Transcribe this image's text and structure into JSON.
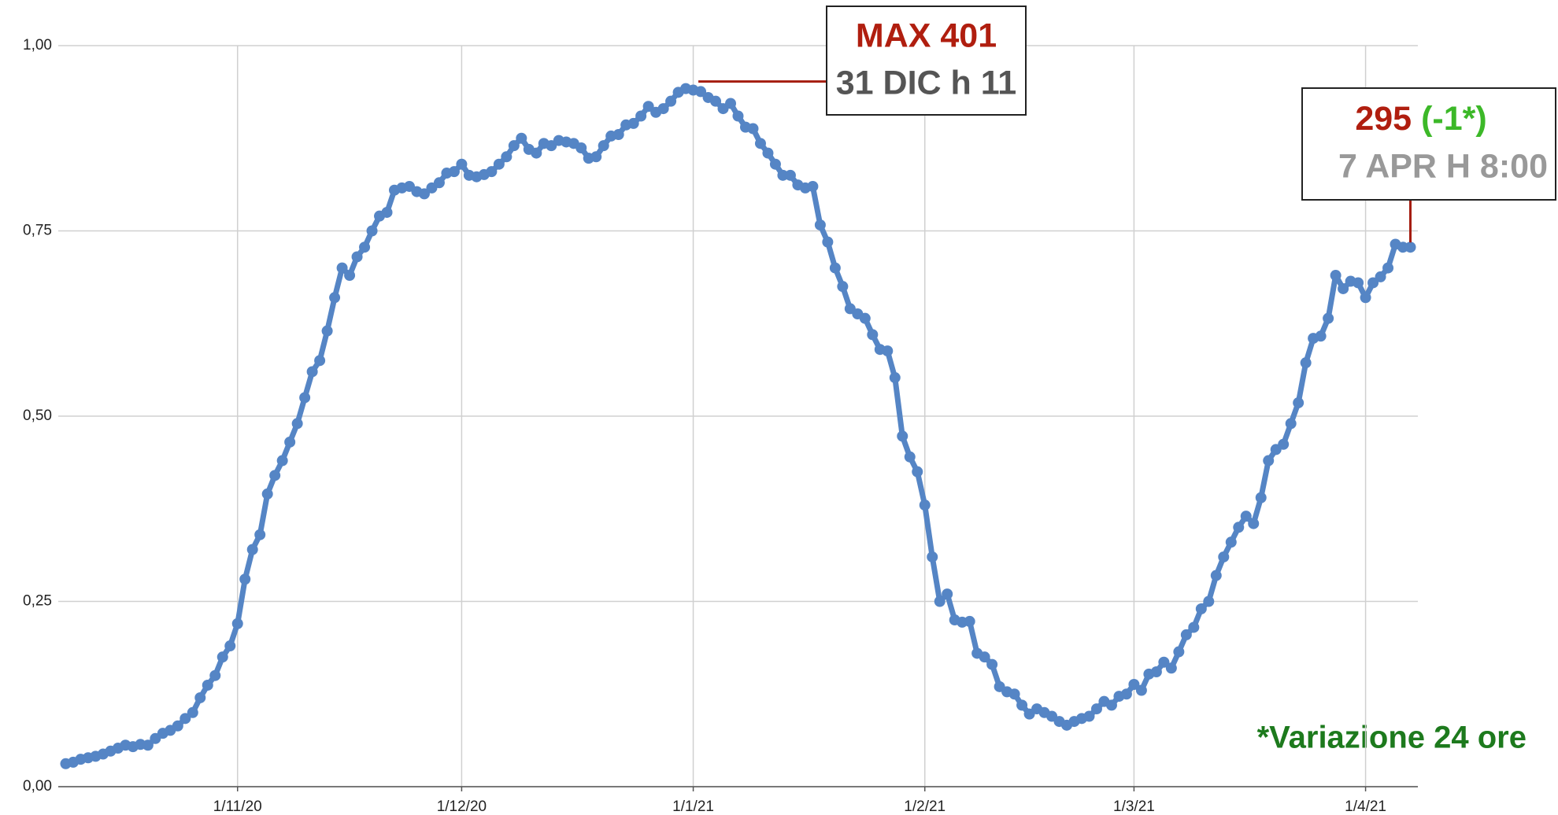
{
  "chart_data": {
    "type": "line",
    "color": "#5585c5",
    "grid": true,
    "x": [
      "9/10/20",
      "10/10/20",
      "11/10/20",
      "12/10/20",
      "13/10/20",
      "14/10/20",
      "15/10/20",
      "16/10/20",
      "17/10/20",
      "18/10/20",
      "19/10/20",
      "20/10/20",
      "21/10/20",
      "22/10/20",
      "23/10/20",
      "24/10/20",
      "25/10/20",
      "26/10/20",
      "27/10/20",
      "28/10/20",
      "29/10/20",
      "30/10/20",
      "31/10/20",
      "1/11/20",
      "2/11/20",
      "3/11/20",
      "4/11/20",
      "5/11/20",
      "6/11/20",
      "7/11/20",
      "8/11/20",
      "9/11/20",
      "10/11/20",
      "11/11/20",
      "12/11/20",
      "13/11/20",
      "14/11/20",
      "15/11/20",
      "16/11/20",
      "17/11/20",
      "18/11/20",
      "19/11/20",
      "20/11/20",
      "21/11/20",
      "22/11/20",
      "23/11/20",
      "24/11/20",
      "25/11/20",
      "26/11/20",
      "27/11/20",
      "28/11/20",
      "29/11/20",
      "30/11/20",
      "1/12/20",
      "2/12/20",
      "3/12/20",
      "4/12/20",
      "5/12/20",
      "6/12/20",
      "7/12/20",
      "8/12/20",
      "9/12/20",
      "10/12/20",
      "11/12/20",
      "12/12/20",
      "13/12/20",
      "14/12/20",
      "15/12/20",
      "16/12/20",
      "17/12/20",
      "18/12/20",
      "19/12/20",
      "20/12/20",
      "21/12/20",
      "22/12/20",
      "23/12/20",
      "24/12/20",
      "25/12/20",
      "26/12/20",
      "27/12/20",
      "28/12/20",
      "29/12/20",
      "30/12/20",
      "31/12/20",
      "1/1/21",
      "2/1/21",
      "3/1/21",
      "4/1/21",
      "5/1/21",
      "6/1/21",
      "7/1/21",
      "8/1/21",
      "9/1/21",
      "10/1/21",
      "11/1/21",
      "12/1/21",
      "13/1/21",
      "14/1/21",
      "15/1/21",
      "16/1/21",
      "17/1/21",
      "18/1/21",
      "19/1/21",
      "20/1/21",
      "21/1/21",
      "22/1/21",
      "23/1/21",
      "24/1/21",
      "25/1/21",
      "26/1/21",
      "27/1/21",
      "28/1/21",
      "29/1/21",
      "30/1/21",
      "31/1/21",
      "1/2/21",
      "2/2/21",
      "3/2/21",
      "4/2/21",
      "5/2/21",
      "6/2/21",
      "7/2/21",
      "8/2/21",
      "9/2/21",
      "10/2/21",
      "11/2/21",
      "12/2/21",
      "13/2/21",
      "14/2/21",
      "15/2/21",
      "16/2/21",
      "17/2/21",
      "18/2/21",
      "19/2/21",
      "20/2/21",
      "21/2/21",
      "22/2/21",
      "23/2/21",
      "24/2/21",
      "25/2/21",
      "26/2/21",
      "27/2/21",
      "28/2/21",
      "1/3/21",
      "2/3/21",
      "3/3/21",
      "4/3/21",
      "5/3/21",
      "6/3/21",
      "7/3/21",
      "8/3/21",
      "9/3/21",
      "10/3/21",
      "11/3/21",
      "12/3/21",
      "13/3/21",
      "14/3/21",
      "15/3/21",
      "16/3/21",
      "17/3/21",
      "18/3/21",
      "19/3/21",
      "20/3/21",
      "21/3/21",
      "22/3/21",
      "23/3/21",
      "24/3/21",
      "25/3/21",
      "26/3/21",
      "27/3/21",
      "28/3/21",
      "29/3/21",
      "30/3/21",
      "31/3/21",
      "1/4/21",
      "2/4/21",
      "3/4/21",
      "4/4/21",
      "5/4/21",
      "6/4/21",
      "7/4/21"
    ],
    "values": [
      0.031,
      0.033,
      0.037,
      0.039,
      0.041,
      0.044,
      0.048,
      0.052,
      0.056,
      0.054,
      0.057,
      0.056,
      0.065,
      0.072,
      0.076,
      0.082,
      0.092,
      0.1,
      0.12,
      0.137,
      0.15,
      0.175,
      0.19,
      0.22,
      0.28,
      0.32,
      0.34,
      0.395,
      0.42,
      0.44,
      0.465,
      0.49,
      0.525,
      0.56,
      0.575,
      0.615,
      0.66,
      0.7,
      0.69,
      0.715,
      0.728,
      0.75,
      0.77,
      0.775,
      0.805,
      0.808,
      0.81,
      0.803,
      0.8,
      0.808,
      0.815,
      0.828,
      0.83,
      0.84,
      0.825,
      0.823,
      0.826,
      0.83,
      0.84,
      0.85,
      0.865,
      0.875,
      0.86,
      0.855,
      0.868,
      0.865,
      0.872,
      0.87,
      0.868,
      0.862,
      0.848,
      0.85,
      0.865,
      0.878,
      0.88,
      0.893,
      0.895,
      0.905,
      0.918,
      0.91,
      0.915,
      0.925,
      0.937,
      0.942,
      0.94,
      0.938,
      0.93,
      0.925,
      0.915,
      0.922,
      0.905,
      0.89,
      0.888,
      0.868,
      0.855,
      0.84,
      0.825,
      0.825,
      0.812,
      0.808,
      0.81,
      0.758,
      0.735,
      0.7,
      0.675,
      0.645,
      0.638,
      0.632,
      0.61,
      0.59,
      0.588,
      0.552,
      0.473,
      0.445,
      0.425,
      0.38,
      0.31,
      0.25,
      0.26,
      0.225,
      0.222,
      0.223,
      0.18,
      0.175,
      0.165,
      0.135,
      0.128,
      0.125,
      0.11,
      0.098,
      0.105,
      0.1,
      0.095,
      0.088,
      0.083,
      0.088,
      0.092,
      0.095,
      0.105,
      0.115,
      0.11,
      0.122,
      0.125,
      0.138,
      0.13,
      0.152,
      0.155,
      0.168,
      0.16,
      0.182,
      0.205,
      0.215,
      0.24,
      0.25,
      0.285,
      0.31,
      0.33,
      0.35,
      0.365,
      0.355,
      0.39,
      0.44,
      0.455,
      0.462,
      0.49,
      0.518,
      0.572,
      0.605,
      0.608,
      0.632,
      0.69,
      0.672,
      0.682,
      0.68,
      0.66,
      0.68,
      0.688,
      0.7,
      0.732,
      0.728,
      0.728
    ],
    "xlim": [
      "8/10/20",
      "8/4/21"
    ],
    "xticks": [
      "1/11/20",
      "1/12/20",
      "1/1/21",
      "1/2/21",
      "1/3/21",
      "1/4/21"
    ],
    "ylim": [
      0,
      1
    ],
    "yticks": [
      {
        "value": 0,
        "label": "0,00"
      },
      {
        "value": 0.25,
        "label": "0,25"
      },
      {
        "value": 0.5,
        "label": "0,50"
      },
      {
        "value": 0.75,
        "label": "0,75"
      },
      {
        "value": 1,
        "label": "1,00"
      }
    ],
    "annotations": [
      {
        "title": "MAX 401",
        "subtitle": "31 DIC h 11"
      },
      {
        "title": "295",
        "change": "(-1*)",
        "subtitle": "7 APR H 8:00"
      }
    ],
    "footnote": "*Variazione 24 ore"
  }
}
